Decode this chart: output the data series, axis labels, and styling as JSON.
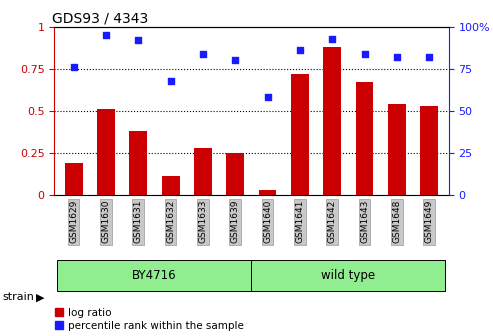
{
  "title": "GDS93 / 4343",
  "categories": [
    "GSM1629",
    "GSM1630",
    "GSM1631",
    "GSM1632",
    "GSM1633",
    "GSM1639",
    "GSM1640",
    "GSM1641",
    "GSM1642",
    "GSM1643",
    "GSM1648",
    "GSM1649"
  ],
  "log_ratio": [
    0.19,
    0.51,
    0.38,
    0.11,
    0.28,
    0.25,
    0.03,
    0.72,
    0.88,
    0.67,
    0.54,
    0.53
  ],
  "percentile_rank": [
    0.76,
    0.95,
    0.92,
    0.68,
    0.84,
    0.8,
    0.58,
    0.86,
    0.93,
    0.84,
    0.82,
    0.82
  ],
  "bar_color": "#cc0000",
  "dot_color": "#1a1aff",
  "ylim": [
    0,
    1.0
  ],
  "yticks_left": [
    0,
    0.25,
    0.5,
    0.75,
    1.0
  ],
  "ytick_labels_left": [
    "0",
    "0.25",
    "0.5",
    "0.75",
    "1"
  ],
  "yticks_right_vals": [
    0,
    0.25,
    0.5,
    0.75,
    1.0
  ],
  "ytick_labels_right": [
    "0",
    "25",
    "50",
    "75",
    "100%"
  ],
  "strain_label": "strain",
  "by4716_label": "BY4716",
  "wild_type_label": "wild type",
  "legend_log_ratio": "log ratio",
  "legend_percentile": "percentile rank within the sample",
  "background_color": "#ffffff",
  "tick_label_bg": "#c8c8c8",
  "strain_bg_color": "#90ee90",
  "n_by4716": 6,
  "n_wild": 6
}
